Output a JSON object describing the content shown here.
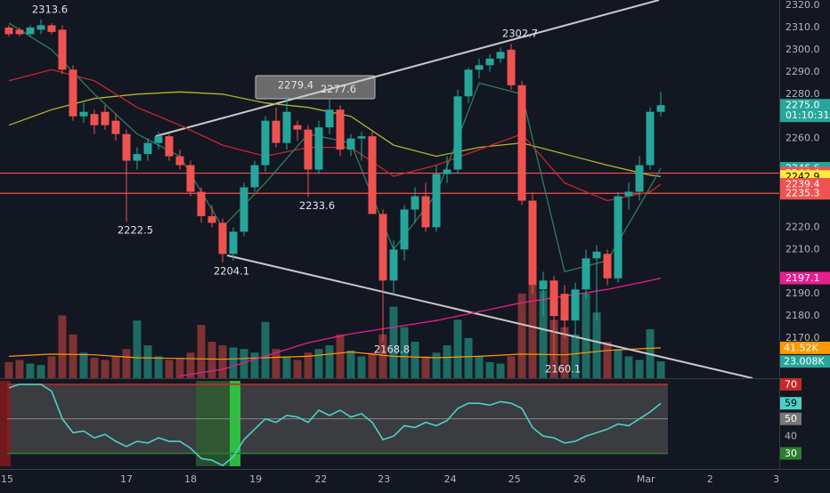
{
  "chart_data": [
    {
      "type": "candlestick",
      "x": [
        0,
        1,
        2,
        3,
        4,
        5,
        6,
        7,
        8,
        9,
        10,
        11,
        12,
        13,
        14,
        15,
        16,
        17,
        18,
        19,
        20,
        21,
        22,
        23,
        24,
        25,
        26,
        27,
        28,
        29,
        30,
        31,
        32,
        33,
        34,
        35,
        36,
        37,
        38,
        39,
        40,
        41,
        42,
        43,
        44,
        45,
        46,
        47,
        48,
        49,
        50,
        51,
        52,
        53,
        54,
        55,
        56,
        57,
        58,
        59,
        60,
        61
      ],
      "open": [
        2310,
        2309,
        2307,
        2309,
        2311,
        2309,
        2291,
        2270,
        2271,
        2272,
        2268,
        2262,
        2250,
        2253,
        2258,
        2261,
        2252,
        2248,
        2236,
        2225,
        2222,
        2208,
        2218,
        2238,
        2248,
        2268,
        2258,
        2266,
        2264,
        2246,
        2265,
        2273,
        2255,
        2260,
        2261,
        2226,
        2196,
        2210,
        2228,
        2234,
        2220,
        2244,
        2246,
        2279,
        2291,
        2293,
        2296,
        2300,
        2284,
        2232,
        2192,
        2196,
        2190,
        2178,
        2192,
        2206,
        2208,
        2197,
        2234,
        2236,
        2248,
        2272
      ],
      "high": [
        2311,
        2310,
        2311,
        2313.6,
        2312,
        2311,
        2293,
        2276,
        2273,
        2275,
        2271,
        2264,
        2256,
        2260,
        2263,
        2262,
        2255,
        2250,
        2238,
        2230,
        2224,
        2220,
        2240,
        2250,
        2270,
        2274,
        2279.4,
        2268,
        2266,
        2268,
        2277.6,
        2275,
        2262,
        2263,
        2263,
        2228,
        2214,
        2230,
        2238,
        2240,
        2248,
        2252,
        2282,
        2292,
        2296,
        2298,
        2301,
        2302.7,
        2286,
        2236,
        2200,
        2198,
        2194,
        2195,
        2210,
        2212,
        2210,
        2236,
        2240,
        2252,
        2274,
        2281
      ],
      "low": [
        2306,
        2306,
        2306,
        2307,
        2307,
        2289,
        2268,
        2267,
        2262,
        2264,
        2259,
        2222.5,
        2246,
        2250,
        2255,
        2250,
        2246,
        2234,
        2222,
        2220,
        2204.1,
        2205,
        2216,
        2236,
        2245,
        2256,
        2255,
        2259,
        2233.6,
        2244,
        2262,
        2252,
        2252,
        2250,
        2226,
        2168.8,
        2190,
        2205,
        2222,
        2218,
        2218,
        2240,
        2244,
        2276,
        2287,
        2290,
        2294,
        2282,
        2230,
        2190,
        2180,
        2160.1,
        2170,
        2170,
        2188,
        2178,
        2194,
        2195,
        2228,
        2232,
        2246,
        2270
      ],
      "close": [
        2307,
        2307,
        2310,
        2311,
        2308,
        2291,
        2270,
        2272,
        2266,
        2266,
        2262,
        2250,
        2253,
        2258,
        2261,
        2252,
        2248,
        2236,
        2225,
        2222,
        2208,
        2218,
        2238,
        2248,
        2268,
        2258,
        2272,
        2264,
        2246,
        2265,
        2273,
        2255,
        2260,
        2261,
        2226,
        2196,
        2210,
        2228,
        2234,
        2220,
        2244,
        2246,
        2279,
        2291,
        2293,
        2296,
        2299,
        2284,
        2232,
        2194,
        2196,
        2180,
        2178,
        2192,
        2206,
        2209,
        2197,
        2234,
        2236,
        2248,
        2272,
        2275
      ],
      "up_color": "#26a69a",
      "down_color": "#ef5350",
      "xlim": [
        -0.83,
        72.08
      ],
      "xticks": [
        {
          "value": -0.16,
          "label": "15"
        },
        {
          "value": 11,
          "label": "17"
        },
        {
          "value": 17,
          "label": "18"
        },
        {
          "value": 23.1,
          "label": "19"
        },
        {
          "value": 29.2,
          "label": "22"
        },
        {
          "value": 35.1,
          "label": "23"
        },
        {
          "value": 41.3,
          "label": "24"
        },
        {
          "value": 47.3,
          "label": "25"
        },
        {
          "value": 53.4,
          "label": "26"
        },
        {
          "value": 59.6,
          "label": "Mar"
        },
        {
          "value": 65.6,
          "label": "2"
        },
        {
          "value": 71.8,
          "label": "3"
        }
      ],
      "ylim": [
        2152,
        2322.4
      ],
      "yticks": [
        {
          "value": 2320,
          "label": "2320.0"
        },
        {
          "value": 2310,
          "label": "2310.0"
        },
        {
          "value": 2300,
          "label": "2300.0"
        },
        {
          "value": 2290,
          "label": "2290.0"
        },
        {
          "value": 2280,
          "label": "2280.0"
        },
        {
          "value": 2260,
          "label": "2260.0"
        },
        {
          "value": 2220,
          "label": "2220.0"
        },
        {
          "value": 2210,
          "label": "2210.0"
        },
        {
          "value": 2190,
          "label": "2190.0"
        },
        {
          "value": 2180,
          "label": "2180.0"
        },
        {
          "value": 2170,
          "label": "2170.0"
        }
      ],
      "annotations": [
        {
          "value": 2313.6,
          "x": 3,
          "side": "high"
        },
        {
          "value": 2222.5,
          "x": 11,
          "side": "low"
        },
        {
          "value": 2204.1,
          "x": 20,
          "side": "low"
        },
        {
          "value": 2279.4,
          "x": 26,
          "side": "high"
        },
        {
          "value": 2277.6,
          "x": 30,
          "side": "high"
        },
        {
          "value": 2233.6,
          "x": 28,
          "side": "low"
        },
        {
          "value": 2302.7,
          "x": 47,
          "side": "high"
        },
        {
          "value": 2168.8,
          "x": 35,
          "side": "low"
        },
        {
          "value": 2160.1,
          "x": 51,
          "side": "low"
        }
      ],
      "overlay_x": [
        0,
        4,
        8,
        12,
        16,
        20,
        24,
        28,
        32,
        36,
        40,
        44,
        48,
        52,
        56,
        60,
        61
      ],
      "overlays": [
        {
          "color": "#b5b22e",
          "values": [
            2266,
            2273,
            2278,
            2280,
            2281,
            2280,
            2276,
            2274,
            2270,
            2257,
            2252,
            2256,
            2258,
            2253,
            2248,
            2243.5,
            2242.9
          ]
        },
        {
          "color": "#c62828",
          "values": [
            2286,
            2291,
            2286,
            2274,
            2266,
            2257,
            2252,
            2256,
            2256,
            2243,
            2248,
            2255,
            2262,
            2240,
            2232,
            2236,
            2239.4
          ]
        },
        {
          "color": "#2e7d5b",
          "values": [
            2312,
            2300,
            2280,
            2262,
            2252,
            2220,
            2240,
            2262,
            2258,
            2210,
            2235,
            2285,
            2280,
            2200,
            2205,
            2238,
            2246.6
          ]
        },
        {
          "color": "#e91e8c",
          "values": [
            null,
            null,
            null,
            null,
            2153,
            2156,
            2162,
            2168,
            2172,
            2175,
            2178,
            2182,
            2186,
            2189,
            2192,
            2196,
            2197.1
          ]
        }
      ],
      "price_labels": [
        {
          "value": 2275,
          "label": "2275.0",
          "color": "#26a69a",
          "countdown": "01:10:31"
        },
        {
          "value": 2246.6,
          "color": "#26a69a"
        },
        {
          "value": 2244.4,
          "color": "#ef5350",
          "hline": true
        },
        {
          "value": 2242.9,
          "color": "#ffeb3b"
        },
        {
          "value": 2239.4,
          "color": "#ef5350"
        },
        {
          "value": 2235.3,
          "color": "#ef5350",
          "hline": true
        },
        {
          "value": 2197.1,
          "color": "#e91e8c"
        }
      ]
    },
    {
      "type": "bar",
      "values": [
        22,
        25,
        20,
        18,
        30,
        86,
        60,
        35,
        28,
        25,
        30,
        40,
        79,
        45,
        30,
        25,
        28,
        35,
        73,
        50,
        45,
        42,
        40,
        35,
        77,
        40,
        30,
        25,
        35,
        40,
        45,
        60,
        38,
        30,
        35,
        60,
        98,
        70,
        50,
        30,
        35,
        45,
        80,
        55,
        30,
        22,
        20,
        30,
        116,
        130,
        120,
        80,
        70,
        60,
        116,
        90,
        50,
        40,
        30,
        25,
        67,
        23.008
      ],
      "value_labels": [
        null,
        null,
        null,
        null,
        null,
        null,
        null,
        null,
        null,
        null,
        null,
        null,
        null,
        null,
        null,
        null,
        null,
        null,
        null,
        null,
        null,
        null,
        null,
        null,
        null,
        null,
        null,
        null,
        null,
        null,
        null,
        null,
        null,
        null,
        null,
        null,
        null,
        null,
        null,
        null,
        null,
        null,
        null,
        null,
        null,
        null,
        null,
        null,
        null,
        null,
        null,
        null,
        null,
        null,
        null,
        null,
        null,
        null,
        null,
        null,
        null,
        "23.008K"
      ],
      "up_color": "#1e6b64",
      "down_color": "#7d3233",
      "label_color": "#26a69a",
      "ylim": [
        0,
        518
      ],
      "overlay": {
        "color": "#ff9800",
        "values": [
          30,
          33,
          32,
          28,
          27,
          26,
          28,
          30,
          36,
          30,
          28,
          30,
          33,
          32,
          38,
          41,
          41.52
        ],
        "value_labels": [
          null,
          null,
          null,
          null,
          null,
          null,
          null,
          null,
          null,
          null,
          null,
          null,
          null,
          null,
          null,
          null,
          "41.52K"
        ]
      }
    },
    {
      "type": "line",
      "values": [
        68,
        70,
        70,
        70,
        66,
        50,
        42,
        43,
        39,
        41,
        37,
        34,
        37,
        36,
        39,
        37,
        37,
        33,
        27,
        26,
        23,
        28,
        38,
        44,
        50,
        48,
        52,
        51,
        48,
        55,
        52,
        55,
        51,
        53,
        48,
        38,
        40,
        46,
        45,
        48,
        46,
        49,
        56,
        59,
        59,
        58,
        60,
        59,
        56,
        45,
        40,
        39,
        36,
        37,
        40,
        42,
        44,
        47,
        46,
        50,
        54,
        59
      ],
      "color": "#4dd0c8",
      "ylim": [
        22,
        72
      ],
      "yticks": [
        70,
        50,
        40,
        30
      ],
      "tick_colors": [
        "#c62828",
        "#777777",
        null,
        "#2e7d32"
      ]
    }
  ]
}
